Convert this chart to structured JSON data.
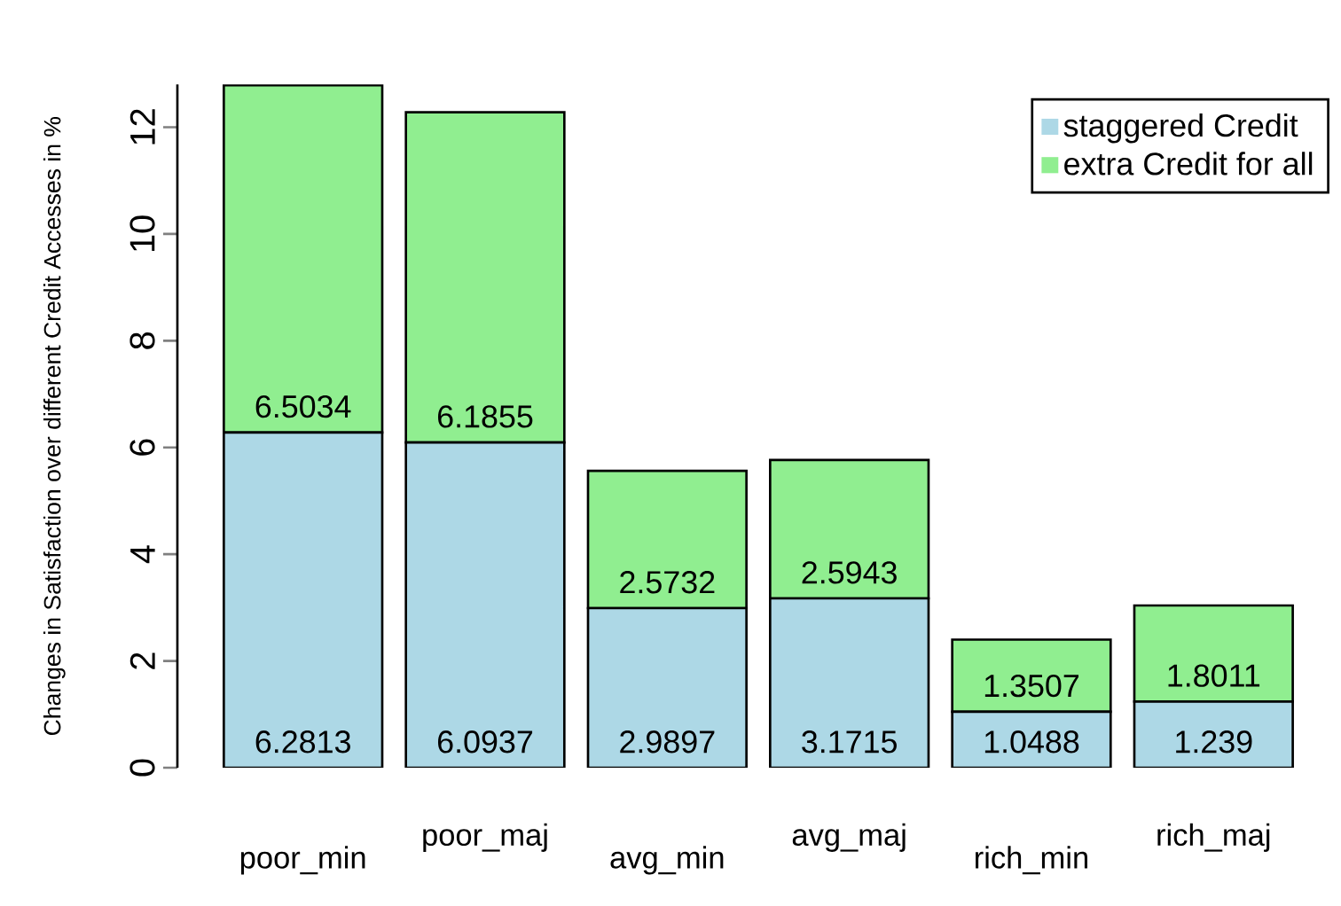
{
  "chart_data": {
    "type": "bar",
    "stacked": true,
    "ylabel": "Changes in Satisfaction over different Credit Accesses in %",
    "categories": [
      "poor_min",
      "poor_maj",
      "avg_min",
      "avg_maj",
      "rich_min",
      "rich_maj"
    ],
    "series": [
      {
        "name": "staggered Credit",
        "color": "#add8e6",
        "values": [
          6.2813,
          6.0937,
          2.9897,
          3.1715,
          1.0488,
          1.239
        ]
      },
      {
        "name": "extra Credit for all",
        "color": "#90ee90",
        "values": [
          6.5034,
          6.1855,
          2.5732,
          2.5943,
          1.3507,
          1.8011
        ]
      }
    ],
    "ylim": [
      0,
      12.8
    ],
    "yticks": [
      0,
      2,
      4,
      6,
      8,
      10,
      12
    ],
    "legend": "top right",
    "data_labels": true
  }
}
